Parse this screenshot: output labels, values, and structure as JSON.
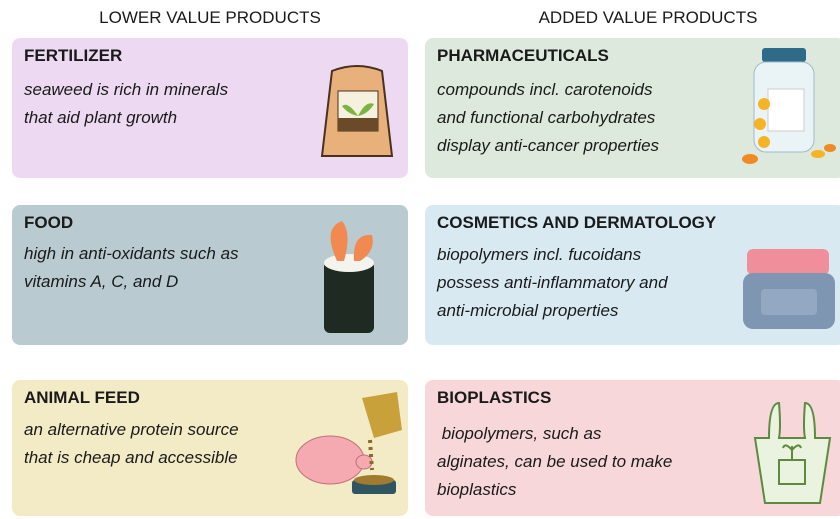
{
  "headers": [
    "LOWER VALUE PRODUCTS",
    "ADDED VALUE PRODUCTS"
  ],
  "cards": [
    {
      "title": "FERTILIZER",
      "lines": [
        "seaweed is rich in minerals",
        "that aid plant growth"
      ]
    },
    {
      "title": "PHARMACEUTICALS",
      "lines": [
        "compounds incl. carotenoids",
        "and functional carbohydrates",
        "display anti-cancer properties"
      ]
    },
    {
      "title": "FOOD",
      "lines": [
        "high in anti-oxidants such as",
        "vitamins A, C, and D"
      ]
    },
    {
      "title": "COSMETICS AND DERMATOLOGY",
      "lines": [
        "biopolymers incl. fucoidans",
        "possess anti-inflammatory and",
        "anti-microbial properties"
      ]
    },
    {
      "title": "ANIMAL FEED",
      "lines": [
        "an alternative protein source",
        "that is cheap and accessible"
      ]
    },
    {
      "title": "BIOPLASTICS",
      "lines": [
        " biopolymers, such as",
        "alginates, can be used to make",
        "bioplastics"
      ]
    }
  ]
}
